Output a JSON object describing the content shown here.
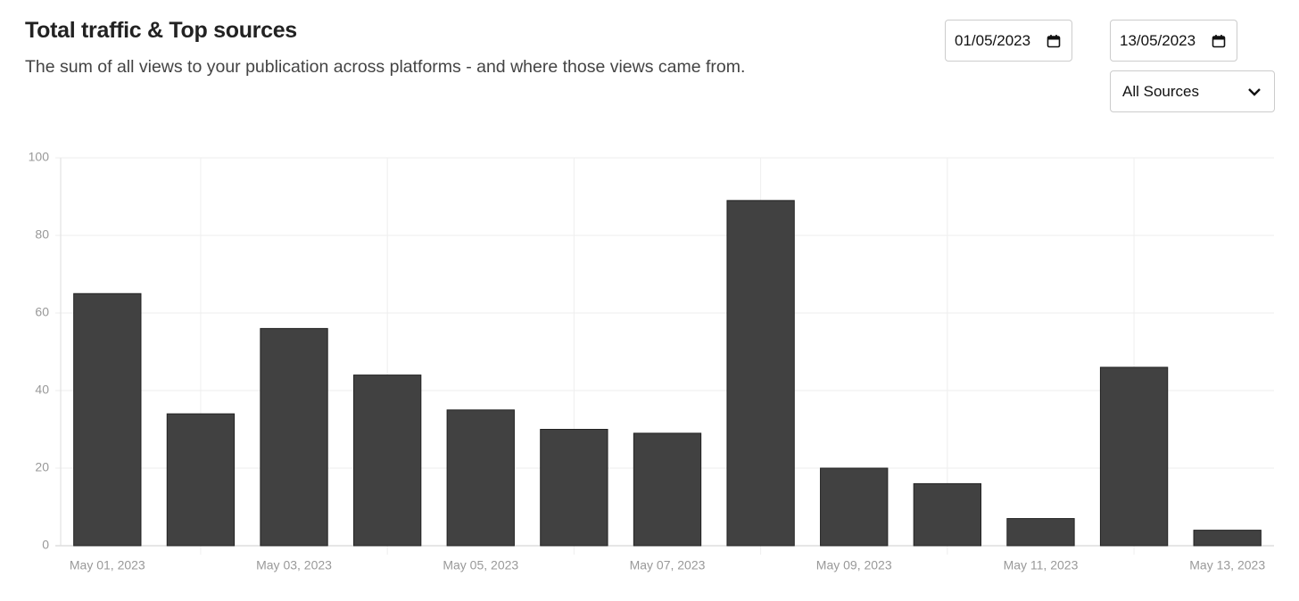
{
  "header": {
    "title": "Total traffic & Top sources",
    "subtitle": "The sum of all views to your publication across platforms - and where those views came from."
  },
  "controls": {
    "date_from": "01/05/2023",
    "date_to": "13/05/2023",
    "source_filter": "All Sources"
  },
  "chart_data": {
    "type": "bar",
    "categories": [
      "May 01, 2023",
      null,
      "May 03, 2023",
      null,
      "May 05, 2023",
      null,
      "May 07, 2023",
      null,
      "May 09, 2023",
      null,
      "May 11, 2023",
      null,
      "May 13, 2023"
    ],
    "values": [
      65,
      34,
      56,
      44,
      35,
      30,
      29,
      89,
      20,
      16,
      7,
      46,
      4
    ],
    "color": "#414141",
    "ylim": [
      0,
      100
    ],
    "yticks": [
      0,
      20,
      40,
      60,
      80,
      100
    ],
    "grid": true
  }
}
